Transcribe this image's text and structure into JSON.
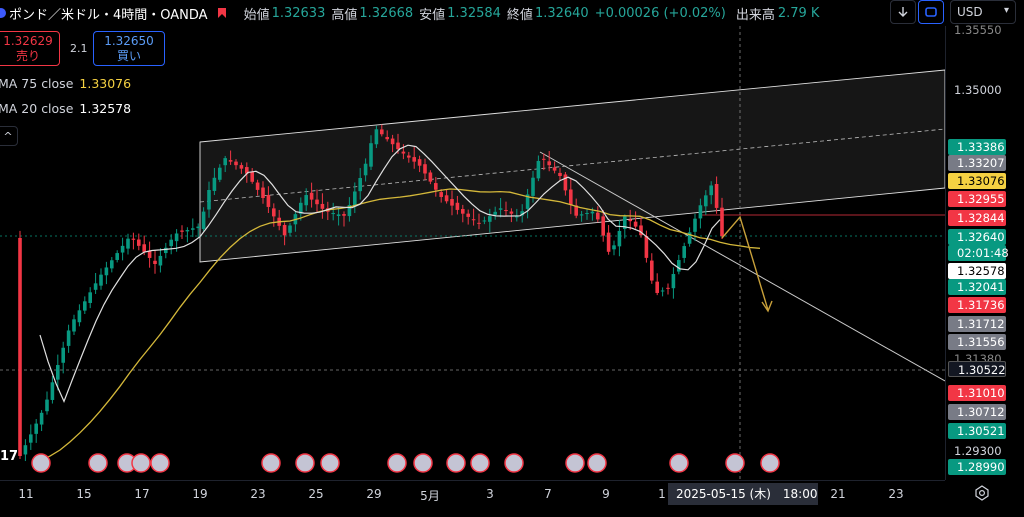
{
  "header": {
    "symbol": "ポンド／米ドル・4時間・OANDA",
    "open_label": "始値",
    "open": "1.32633",
    "high_label": "高値",
    "high": "1.32668",
    "low_label": "安値",
    "low": "1.32584",
    "close_label": "終値",
    "close": "1.32640",
    "change": "+0.00026 (+0.02%)",
    "volume_label": "出来高",
    "volume": "2.79 K",
    "currency": "USD",
    "down_icon": "arrow-down-icon",
    "replay_icon": "replay-icon"
  },
  "trade": {
    "sell_price": "1.32629",
    "sell_label": "売り",
    "spread": "2.1",
    "buy_price": "1.32650",
    "buy_label": "買い"
  },
  "indicators": {
    "ma75_label": "MA 75 close",
    "ma75_value": "1.33076",
    "ma20_label": "MA 20 close",
    "ma20_value": "1.32578",
    "collapse_icon": "chevron-up-icon"
  },
  "price_axis": {
    "labels": [
      "1.35000",
      "1.29300"
    ],
    "top_partial": "1.35550",
    "bottom_partial": "1.31380"
  },
  "price_badges": [
    {
      "text": "1.33386",
      "color": "#089981"
    },
    {
      "text": "1.33207",
      "color": "#787b86"
    },
    {
      "text": "1.33076",
      "color": "#f5d142",
      "dark": true
    },
    {
      "text": "1.32955",
      "color": "#f23645"
    },
    {
      "text": "1.32844",
      "color": "#f23645"
    },
    {
      "text": "1.32640",
      "color": "#089981"
    },
    {
      "text": "02:01:48",
      "color": "#089981"
    },
    {
      "text": "1.32578",
      "color": "#ffffff",
      "dark": true
    },
    {
      "text": "1.32041",
      "color": "#089981"
    },
    {
      "text": "1.31736",
      "color": "#f23645"
    },
    {
      "text": "1.31712",
      "color": "#787b86"
    },
    {
      "text": "1.31556",
      "color": "#787b86"
    },
    {
      "text": "1.30522",
      "color": "#131722"
    },
    {
      "text": "1.31010",
      "color": "#f23645"
    },
    {
      "text": "1.30712",
      "color": "#787b86"
    },
    {
      "text": "1.30521",
      "color": "#089981"
    },
    {
      "text": "1.28990",
      "color": "#089981"
    }
  ],
  "time_axis": {
    "labels": [
      "11",
      "15",
      "17",
      "19",
      "23",
      "25",
      "29",
      "5月",
      "3",
      "7",
      "9",
      "1",
      "21",
      "23"
    ],
    "cursor": "2025-05-15 (木)　18:00"
  },
  "chart_partial_label": "17",
  "colors": {
    "up": "#089981",
    "down": "#f23645",
    "ma75": "#d4b83a",
    "ma20": "#e0e0e0",
    "channel_fill": "#1c1c1c"
  }
}
